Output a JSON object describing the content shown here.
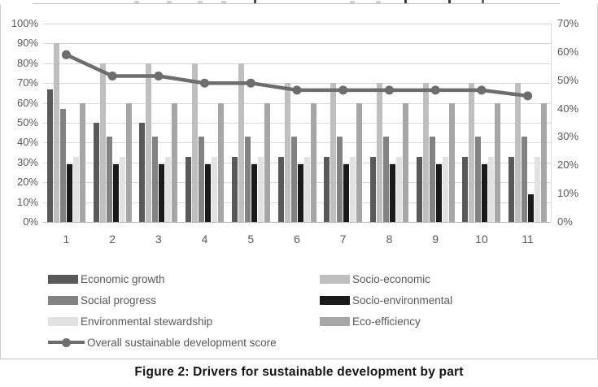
{
  "figure": {
    "caption": "Figure 2: Drivers for sustainable development by part"
  },
  "chart_data": {
    "type": "bar",
    "subtype": "grouped-bars-with-line-overlay",
    "categories": [
      "1",
      "2",
      "3",
      "4",
      "5",
      "6",
      "7",
      "8",
      "9",
      "10",
      "11"
    ],
    "series": [
      {
        "name": "Economic growth",
        "type": "bar",
        "axis": "left",
        "color": "#595959",
        "values": [
          67,
          50,
          50,
          33,
          33,
          33,
          33,
          33,
          33,
          33,
          33
        ]
      },
      {
        "name": "Socio-economic",
        "type": "bar",
        "axis": "left",
        "color": "#bfbfbf",
        "values": [
          90,
          80,
          80,
          80,
          80,
          70,
          70,
          70,
          70,
          70,
          70
        ]
      },
      {
        "name": "Social progress",
        "type": "bar",
        "axis": "left",
        "color": "#828282",
        "values": [
          57,
          43,
          43,
          43,
          43,
          43,
          43,
          43,
          43,
          43,
          43
        ]
      },
      {
        "name": "Socio-environmental",
        "type": "bar",
        "axis": "left",
        "color": "#1a1a1a",
        "values": [
          29,
          29,
          29,
          29,
          29,
          29,
          29,
          29,
          29,
          29,
          14
        ]
      },
      {
        "name": "Environmental stewardship",
        "type": "bar",
        "axis": "left",
        "color": "#e2e2e2",
        "values": [
          33,
          33,
          33,
          33,
          33,
          33,
          33,
          33,
          33,
          33,
          33
        ]
      },
      {
        "name": "Eco-efficiency",
        "type": "bar",
        "axis": "left",
        "color": "#a6a6a6",
        "values": [
          60,
          60,
          60,
          60,
          60,
          60,
          60,
          60,
          60,
          60,
          60
        ]
      },
      {
        "name": "Overall sustainable development score",
        "type": "line",
        "axis": "right",
        "color": "#6d6d6d",
        "values": [
          59,
          51.5,
          51.5,
          49,
          49,
          46.5,
          46.5,
          46.5,
          46.5,
          46.5,
          44.5
        ]
      }
    ],
    "left_axis": {
      "min": 0,
      "max": 100,
      "tick_labels": [
        "100%",
        "90%",
        "80%",
        "70%",
        "60%",
        "50%",
        "40%",
        "30%",
        "20%",
        "10%",
        "0%"
      ]
    },
    "right_axis": {
      "min": 0,
      "max": 70,
      "tick_labels": [
        "70%",
        "60%",
        "50%",
        "40%",
        "30%",
        "20%",
        "10%",
        "0%"
      ]
    },
    "grid": true,
    "legend_position": "bottom",
    "legend_columns": [
      {
        "items": [
          {
            "label": "Economic growth",
            "swatch": "bar",
            "color": "#595959"
          },
          {
            "label": "Social progress",
            "swatch": "bar",
            "color": "#828282"
          },
          {
            "label": "Environmental stewardship",
            "swatch": "bar",
            "color": "#e2e2e2"
          },
          {
            "label": "Overall sustainable development score",
            "swatch": "line",
            "color": "#6d6d6d"
          }
        ]
      },
      {
        "items": [
          {
            "label": "Socio-economic",
            "swatch": "bar",
            "color": "#bfbfbf"
          },
          {
            "label": "Socio-environmental",
            "swatch": "bar",
            "color": "#1a1a1a"
          },
          {
            "label": "Eco-efficiency",
            "swatch": "bar",
            "color": "#a6a6a6"
          }
        ]
      }
    ]
  }
}
